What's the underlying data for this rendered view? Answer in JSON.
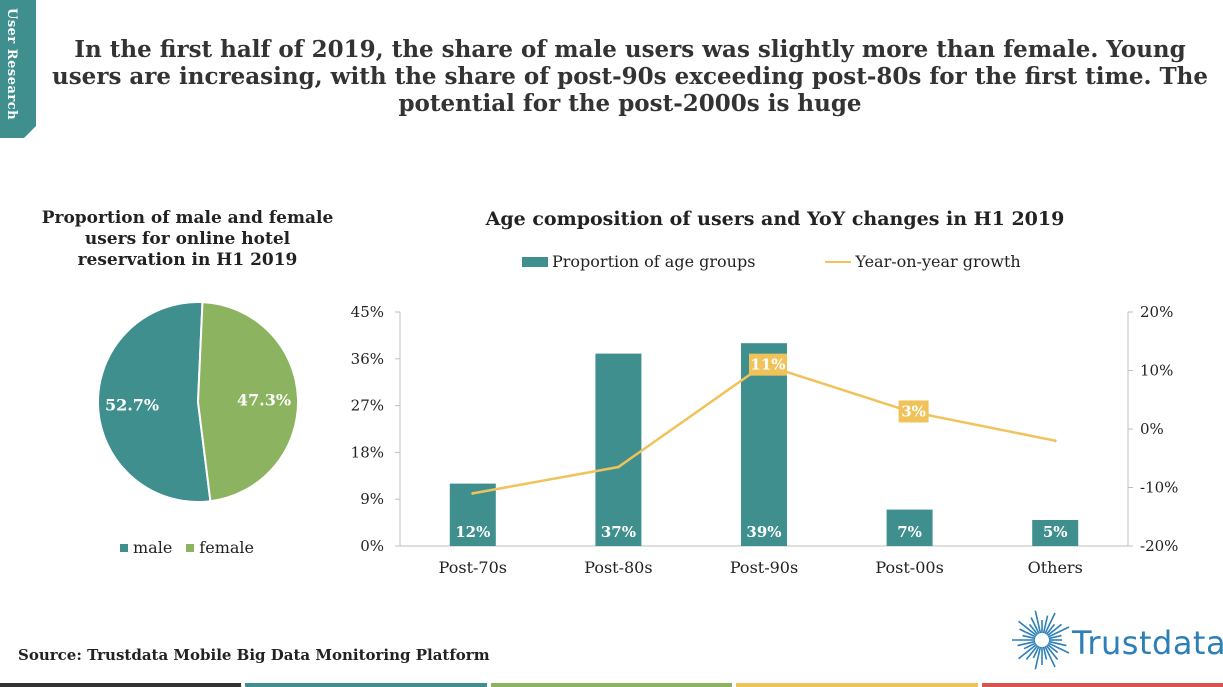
{
  "side_tab": {
    "label": "User Research"
  },
  "headline": "In the first half of 2019, the share of male users was slightly more than female. Young users are increasing, with the share of post-90s exceeding post-80s for the first time. The potential for the post-2000s is huge",
  "source": "Source: Trustdata Mobile Big Data Monitoring Platform",
  "logo": {
    "name": "Trustdata",
    "color": "#2c7fb8"
  },
  "colors": {
    "teal": "#3f8f8e",
    "green": "#8cb35f",
    "gold": "#f0c35a",
    "tab": "#3f8f8e"
  },
  "chart_data": [
    {
      "type": "pie",
      "title": "Proportion of male and female users for online hotel reservation in H1 2019",
      "labels": [
        "male",
        "female"
      ],
      "values": [
        52.7,
        47.3
      ],
      "value_labels": [
        "52.7%",
        "47.3%"
      ],
      "colors": [
        "#3f8f8e",
        "#8cb35f"
      ],
      "legend": "bottom"
    },
    {
      "type": "bar",
      "title": "Age composition of users and YoY changes in H1 2019",
      "categories": [
        "Post-70s",
        "Post-80s",
        "Post-90s",
        "Post-00s",
        "Others"
      ],
      "series": [
        {
          "name": "Proportion of age groups",
          "type": "bar",
          "axis": "left",
          "values": [
            12,
            37,
            39,
            7,
            5
          ],
          "labels": [
            "12%",
            "37%",
            "39%",
            "7%",
            "5%"
          ],
          "color": "#3f8f8e"
        },
        {
          "name": "Year-on-year growth",
          "type": "line",
          "axis": "right",
          "values": [
            -11,
            -6.5,
            11,
            3,
            -2
          ],
          "labels": [
            "",
            "",
            "11%",
            "3%",
            ""
          ],
          "color": "#f0c35a"
        }
      ],
      "y_left": {
        "range": [
          0,
          45
        ],
        "ticks": [
          "0%",
          "9%",
          "18%",
          "27%",
          "36%",
          "45%"
        ]
      },
      "y_right": {
        "range": [
          -20,
          20
        ],
        "ticks": [
          "-20%",
          "-10%",
          "0%",
          "10%",
          "20%"
        ]
      },
      "legend": "top",
      "grid": false
    }
  ]
}
